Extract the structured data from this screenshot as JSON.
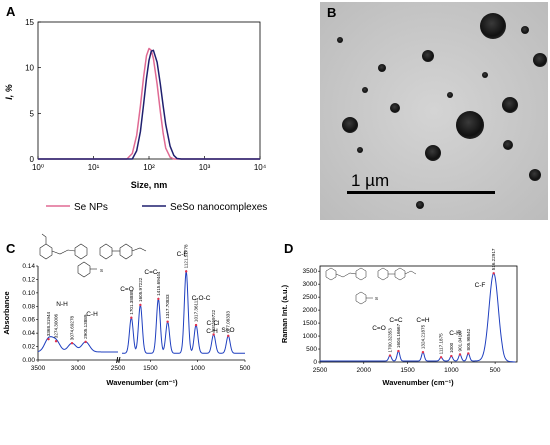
{
  "panels": {
    "A": "A",
    "B": "B",
    "C": "C",
    "D": "D"
  },
  "chart_data": [
    {
      "type": "line",
      "panel": "A",
      "xlabel": "Size, nm",
      "ylabel": "I, %",
      "xscale": "log",
      "xlim": [
        1,
        10000
      ],
      "ylim": [
        0,
        15
      ],
      "xticks": [
        "10⁰",
        "10¹",
        "10²",
        "10³",
        "10⁴"
      ],
      "yticks": [
        "0",
        "5",
        "10",
        "15"
      ],
      "legend_position": "bottom",
      "series": [
        {
          "name": "Se NPs",
          "color": "#e06a93",
          "x": [
            40,
            50,
            60,
            70,
            80,
            90,
            100,
            110,
            120,
            140,
            160,
            180,
            200,
            240,
            280,
            320
          ],
          "y": [
            0,
            0.6,
            2.6,
            5.8,
            9.0,
            11.3,
            12.1,
            11.9,
            11.0,
            8.2,
            5.2,
            2.8,
            1.2,
            0.2,
            0,
            0
          ]
        },
        {
          "name": "SeSo nanocomplexes",
          "color": "#1f1f6e",
          "x": [
            50,
            60,
            70,
            80,
            90,
            100,
            110,
            120,
            140,
            160,
            180,
            200,
            240,
            280,
            320,
            380
          ],
          "y": [
            0,
            0.9,
            3.0,
            6.0,
            8.8,
            10.8,
            11.8,
            11.9,
            10.6,
            8.2,
            5.8,
            3.8,
            1.4,
            0.4,
            0.05,
            0
          ]
        }
      ]
    },
    {
      "type": "image",
      "panel": "B",
      "scale_bar_label": "1 µm"
    },
    {
      "type": "line",
      "panel": "C",
      "xlabel": "Wavenumber (cm⁻¹)",
      "ylabel": "Absorbance",
      "xlim": [
        3500,
        500
      ],
      "ylim": [
        0,
        0.14
      ],
      "xticks": [
        "3500",
        "3000",
        "2500",
        "1500",
        "1000",
        "500"
      ],
      "yticks": [
        "0.00",
        "0.02",
        "0.04",
        "0.06",
        "0.08",
        "0.10",
        "0.12",
        "0.14"
      ],
      "axis_break_text": "//",
      "peaks": [
        {
          "x": 3368.31944,
          "y": 0.031,
          "label": "3368.31944"
        },
        {
          "x": 3274.30006,
          "y": 0.028,
          "label": "3274.30006"
        },
        {
          "x": 3074.69278,
          "y": 0.025,
          "label": "3074.69278"
        },
        {
          "x": 2905.13889,
          "y": 0.027,
          "label": "2905.13889"
        },
        {
          "x": 1701.38889,
          "y": 0.063,
          "label": "1701.38889"
        },
        {
          "x": 1605.97222,
          "y": 0.082,
          "label": "1605.97222"
        },
        {
          "x": 1415.69444,
          "y": 0.091,
          "label": "1415.69444"
        },
        {
          "x": 1317.70833,
          "y": 0.057,
          "label": "1317.70833"
        },
        {
          "x": 1121.52778,
          "y": 0.132,
          "label": "1121.52778"
        },
        {
          "x": 1017.36111,
          "y": 0.052,
          "label": "1017.36111"
        },
        {
          "x": 831.59722,
          "y": 0.038,
          "label": "831.59722"
        },
        {
          "x": 677.08333,
          "y": 0.036,
          "label": "677.08333"
        }
      ],
      "annotations": [
        "N-H",
        "C-H",
        "C=O",
        "C=C",
        "C-F",
        "C-O-C",
        "C-Cl",
        "C-H",
        "S=O"
      ]
    },
    {
      "type": "line",
      "panel": "D",
      "xlabel": "Wavenumber (cm⁻¹)",
      "ylabel": "Raman Int. (a.u.)",
      "xlim": [
        2500,
        250
      ],
      "ylim": [
        0,
        3700
      ],
      "xticks": [
        "2500",
        "2000",
        "1500",
        "1000",
        "500"
      ],
      "yticks": [
        "0",
        "500",
        "1000",
        "1500",
        "2000",
        "2500",
        "3000",
        "3500"
      ],
      "peaks": [
        {
          "x": 1700.32353,
          "y": 250,
          "label": "1700.32353"
        },
        {
          "x": 1604.16667,
          "y": 420,
          "label": "1604.16667"
        },
        {
          "x": 1324.21875,
          "y": 380,
          "label": "1324.21875"
        },
        {
          "x": 1117.1875,
          "y": 180,
          "label": "1117.1875"
        },
        {
          "x": 1000,
          "y": 230,
          "label": "1000"
        },
        {
          "x": 901.04167,
          "y": 290,
          "label": "901.04167"
        },
        {
          "x": 805.98542,
          "y": 330,
          "label": "805.98542"
        },
        {
          "x": 516.22917,
          "y": 3420,
          "label": "516.22917"
        }
      ],
      "annotations": [
        "C=O",
        "C=C",
        "C=H",
        "C-H",
        "C-F"
      ]
    }
  ]
}
